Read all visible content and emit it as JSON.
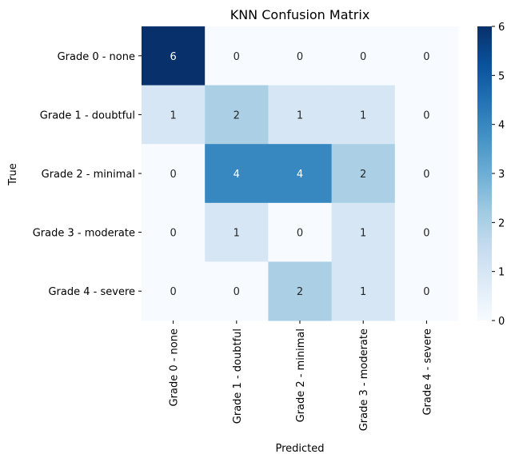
{
  "chart_data": {
    "type": "heatmap",
    "title": "KNN Confusion Matrix",
    "xlabel": "Predicted",
    "ylabel": "True",
    "x_categories": [
      "Grade 0 - none",
      "Grade 1 - doubtful",
      "Grade 2 - minimal",
      "Grade 3 - moderate",
      "Grade 4 - severe"
    ],
    "y_categories": [
      "Grade 0 - none",
      "Grade 1 - doubtful",
      "Grade 2 - minimal",
      "Grade 3 - moderate",
      "Grade 4 - severe"
    ],
    "values": [
      [
        6,
        0,
        0,
        0,
        0
      ],
      [
        1,
        2,
        1,
        1,
        0
      ],
      [
        0,
        4,
        4,
        2,
        0
      ],
      [
        0,
        1,
        0,
        1,
        0
      ],
      [
        0,
        0,
        2,
        1,
        0
      ]
    ],
    "colorbar": {
      "min": 0,
      "max": 6,
      "ticks": [
        0,
        1,
        2,
        3,
        4,
        5,
        6
      ]
    },
    "colormap": "Blues",
    "colors": {
      "low": "#f7fbff",
      "high": "#08306b"
    },
    "grid": false,
    "legend": "colorbar-right"
  }
}
